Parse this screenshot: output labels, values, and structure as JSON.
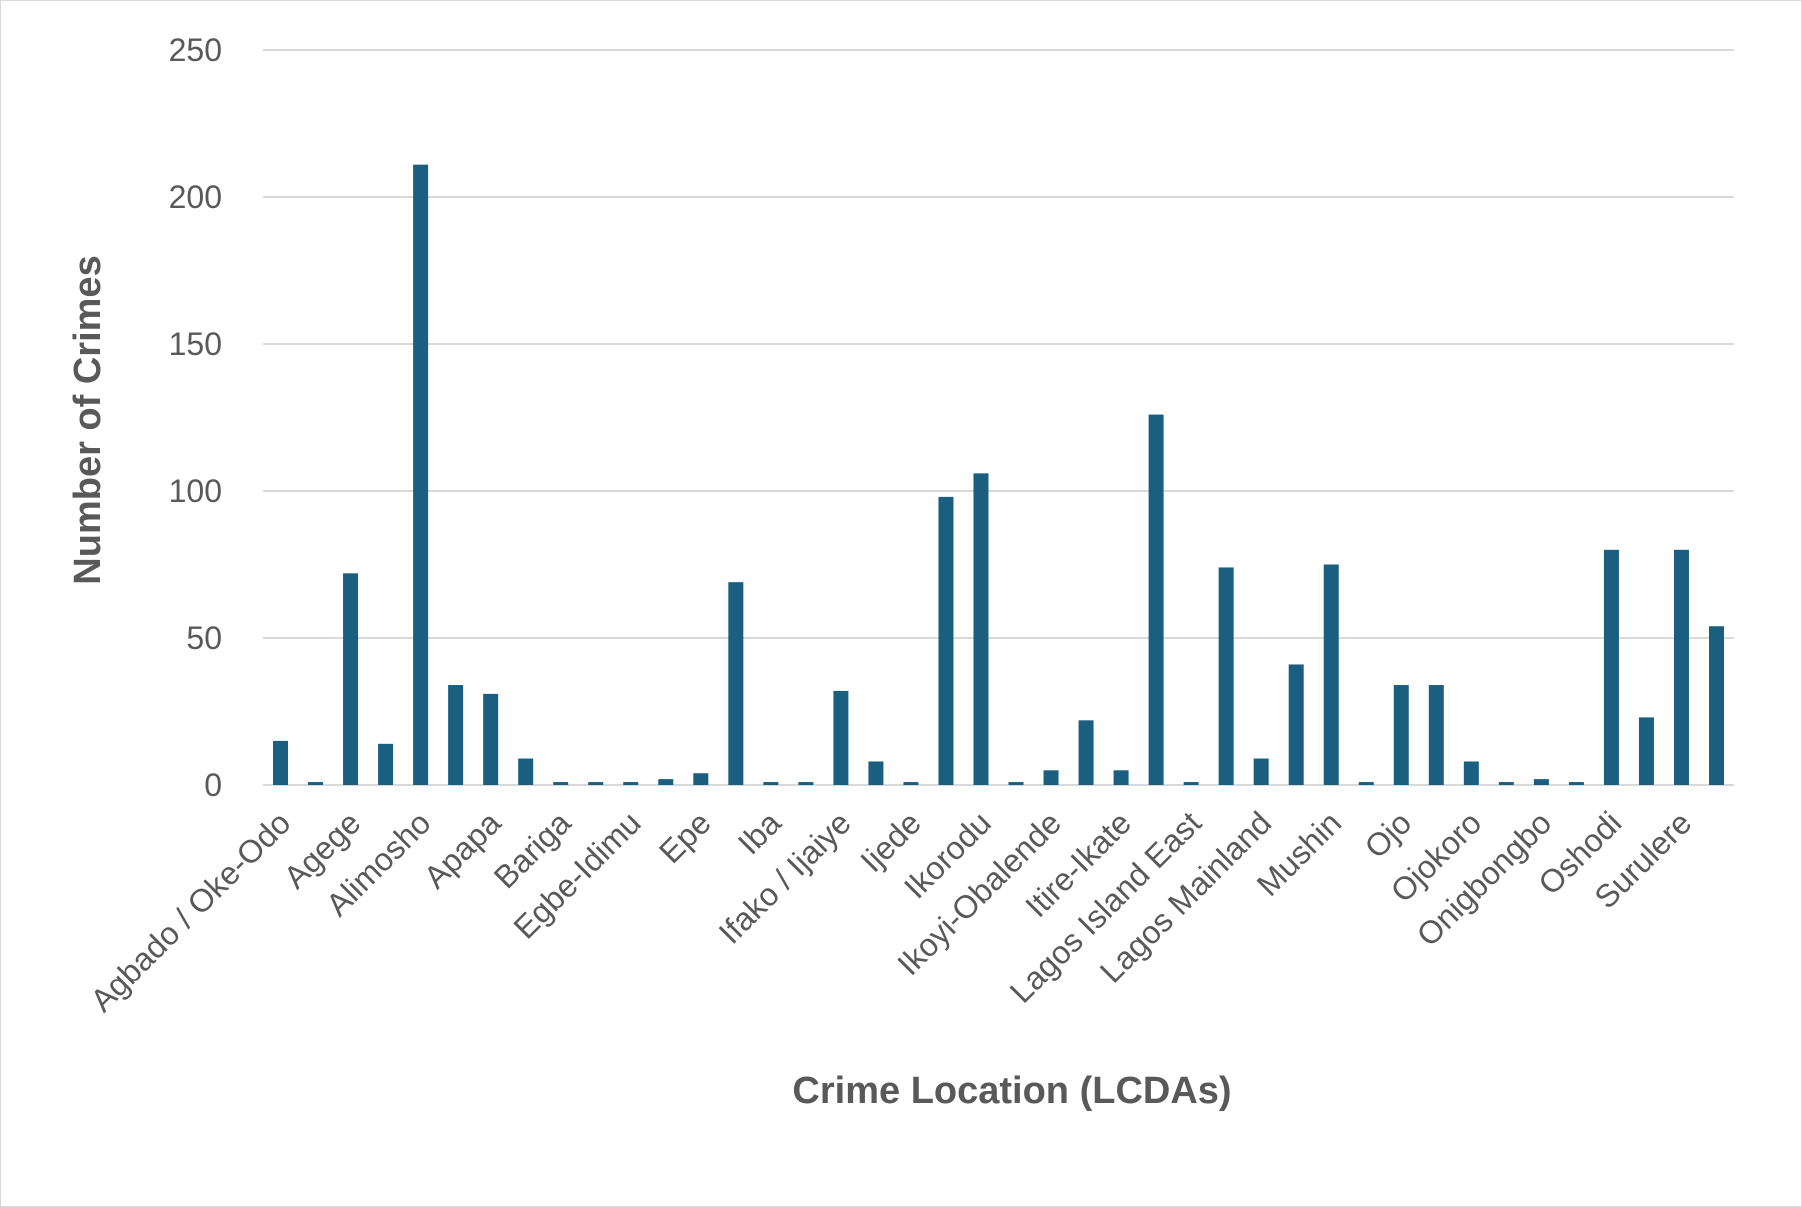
{
  "chart_data": {
    "type": "bar",
    "xlabel": "Crime Location (LCDAs)",
    "ylabel": "Number of Crimes",
    "ylim": [
      0,
      250
    ],
    "yticks": [
      0,
      50,
      100,
      150,
      200,
      250
    ],
    "grid": true,
    "bar_color": "#1a5f80",
    "categories": [
      "Agbado / Oke-Odo",
      "",
      "Agege",
      "",
      "Alimosho",
      "",
      "Apapa",
      "",
      "Bariga",
      "",
      "Egbe-Idimu",
      "",
      "Epe",
      "",
      "Iba",
      "",
      "Ifako / Ijaiye",
      "",
      "Ijede",
      "",
      "Ikorodu",
      "",
      "Ikoyi-Obalende",
      "",
      "Itire-Ikate",
      "",
      "Lagos Island East",
      "",
      "Lagos Mainland",
      "",
      "Mushin",
      "",
      "Ojo",
      "",
      "Ojokoro",
      "",
      "Onigbongbo",
      "",
      "Oshodi",
      "",
      "Surulere",
      ""
    ],
    "values": [
      15,
      1,
      72,
      14,
      211,
      34,
      31,
      9,
      1,
      1,
      1,
      2,
      4,
      69,
      1,
      1,
      32,
      8,
      1,
      98,
      106,
      1,
      5,
      22,
      5,
      126,
      1,
      74,
      9,
      41,
      75,
      1,
      34,
      34,
      8,
      1,
      2,
      1,
      80,
      23,
      80,
      54
    ]
  }
}
